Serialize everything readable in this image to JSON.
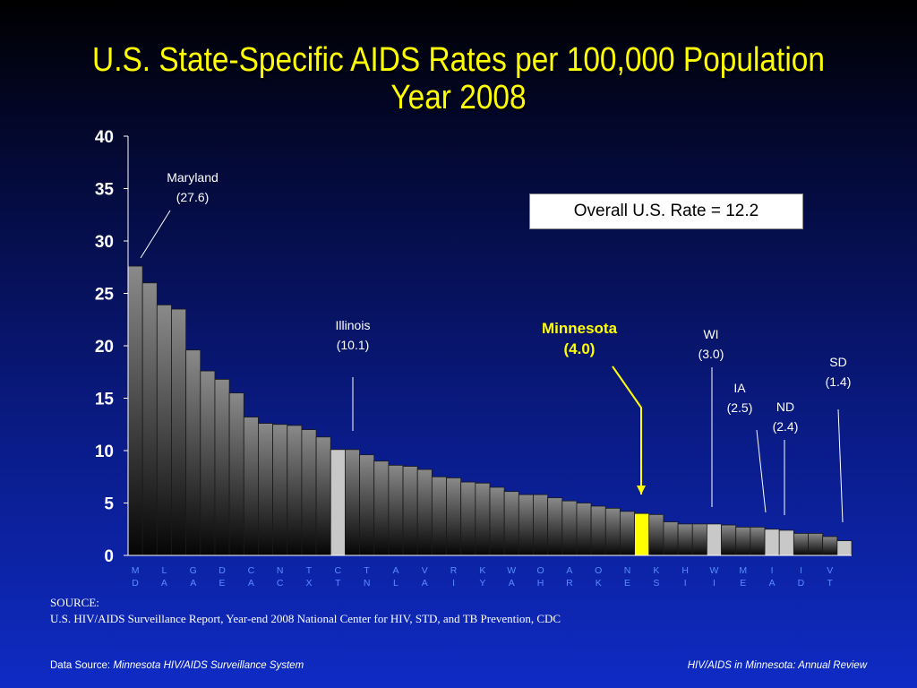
{
  "title": {
    "line1": "U.S. State-Specific AIDS Rates per 100,000 Population",
    "line2": "Year 2008"
  },
  "overall_box": "Overall U.S. Rate = 12.2",
  "source": {
    "label": "SOURCE:",
    "text": "U.S. HIV/AIDS Surveillance Report, Year-end 2008 National Center for HIV, STD, and TB Prevention, CDC"
  },
  "footer": {
    "left_label": "Data Source: ",
    "left_value": "Minnesota HIV/AIDS Surveillance System",
    "right": "HIV/AIDS in Minnesota: Annual Review"
  },
  "colors": {
    "title": "#ffff00",
    "highlight": "#ffff00",
    "reference_bar": "#c8c8c8",
    "axis_label": "#5a8cff",
    "bar_top": "#8a8a8a",
    "bar_bottom": "#050505"
  },
  "chart_data": {
    "type": "bar",
    "ylim": [
      0,
      40
    ],
    "yticks": [
      0,
      5,
      10,
      15,
      20,
      25,
      30,
      35,
      40
    ],
    "grid": false,
    "xtick_labels": [
      "MD",
      "LA",
      "GA",
      "DE",
      "CA",
      "NC",
      "TX",
      "CT",
      "TN",
      "AL",
      "VA",
      "RI",
      "KY",
      "WA",
      "OH",
      "AR",
      "OK",
      "NE",
      "KS",
      "HI",
      "WI",
      "ME",
      "IA",
      "ID",
      "VT"
    ],
    "values": [
      27.6,
      26.0,
      23.9,
      23.5,
      19.6,
      17.6,
      16.8,
      15.5,
      13.2,
      12.6,
      12.5,
      12.4,
      12.0,
      11.3,
      10.1,
      10.1,
      9.6,
      9.0,
      8.6,
      8.5,
      8.2,
      7.5,
      7.4,
      7.0,
      6.9,
      6.5,
      6.1,
      5.8,
      5.8,
      5.5,
      5.2,
      5.0,
      4.7,
      4.5,
      4.2,
      4.0,
      3.9,
      3.2,
      3.0,
      3.0,
      3.0,
      2.9,
      2.7,
      2.7,
      2.5,
      2.4,
      2.1,
      2.1,
      1.8,
      1.4
    ],
    "highlight": {
      "Minnesota": {
        "index": 35,
        "value": 4.0
      },
      "reference": [
        14,
        40,
        44,
        45,
        49
      ]
    },
    "annotations": [
      {
        "id": "maryland",
        "name": "Maryland",
        "value": "(27.6)",
        "index": 0,
        "bold": false
      },
      {
        "id": "illinois",
        "name": "Illinois",
        "value": "(10.1)",
        "index": 15,
        "bold": false
      },
      {
        "id": "minnesota",
        "name": "Minnesota",
        "value": "(4.0)",
        "index": 35,
        "bold": true
      },
      {
        "id": "wi",
        "name": "WI",
        "value": "(3.0)",
        "index": 40,
        "bold": false
      },
      {
        "id": "ia",
        "name": "IA",
        "value": "(2.5)",
        "index": 44,
        "bold": false
      },
      {
        "id": "nd",
        "name": "ND",
        "value": "(2.4)",
        "index": 45,
        "bold": false
      },
      {
        "id": "sd",
        "name": "SD",
        "value": "(1.4)",
        "index": 49,
        "bold": false
      }
    ]
  }
}
